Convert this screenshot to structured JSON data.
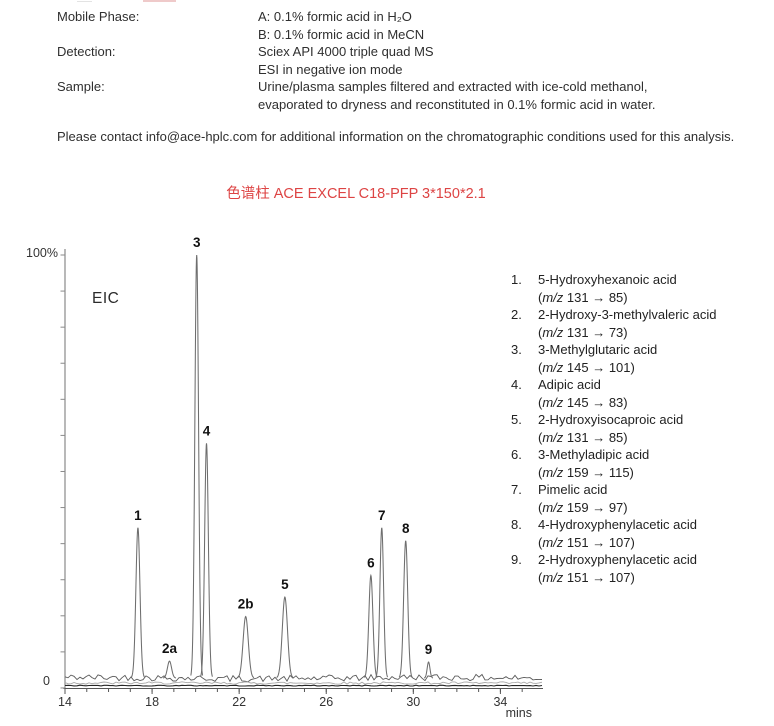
{
  "conditions": {
    "rows": [
      {
        "label": "Mobile Phase:",
        "lines": [
          "A: 0.1% formic acid in H₂O",
          "B: 0.1% formic acid in MeCN"
        ]
      },
      {
        "label": "Detection:",
        "lines": [
          "Sciex API 4000 triple quad MS",
          "ESI in negative ion mode"
        ]
      },
      {
        "label": "Sample:",
        "lines": [
          "Urine/plasma samples filtered and extracted with ice-cold methanol,",
          "evaporated to dryness and reconstituted in 0.1% formic acid in water."
        ]
      }
    ]
  },
  "contact": {
    "text": "Please contact info@ace-hplc.com for additional information on the  chromatographic conditions used for this analysis."
  },
  "column_title": {
    "text": "色谱柱 ACE EXCEL C18-PFP 3*150*2.1",
    "color": "#dd4444"
  },
  "chart_data": {
    "type": "line",
    "title": "EIC",
    "xlabel": "mins",
    "ylabel_top": "100%",
    "ylabel_bottom": "0",
    "x_range": [
      14,
      36
    ],
    "x_ticks_major": [
      14,
      18,
      22,
      26,
      30,
      34
    ],
    "x_tick_minor_step": 1,
    "y_range_pct": [
      0,
      100
    ],
    "grid": "off",
    "legend_position": "right",
    "baseline_noise_pct": 2.3,
    "trace_color": "#6e6e6e",
    "axis_color": "#8a8a8a",
    "peaks": [
      {
        "label": "1",
        "rt_min": 17.35,
        "apex_pct": 37,
        "fwhm_min": 0.22
      },
      {
        "label": "2a",
        "rt_min": 18.8,
        "apex_pct": 6.2,
        "fwhm_min": 0.22
      },
      {
        "label": "3",
        "rt_min": 20.05,
        "apex_pct": 100,
        "fwhm_min": 0.2
      },
      {
        "label": "4",
        "rt_min": 20.5,
        "apex_pct": 56.5,
        "fwhm_min": 0.2
      },
      {
        "label": "2b",
        "rt_min": 22.3,
        "apex_pct": 16.5,
        "fwhm_min": 0.28
      },
      {
        "label": "5",
        "rt_min": 24.1,
        "apex_pct": 21,
        "fwhm_min": 0.28
      },
      {
        "label": "6",
        "rt_min": 28.05,
        "apex_pct": 26,
        "fwhm_min": 0.22
      },
      {
        "label": "7",
        "rt_min": 28.55,
        "apex_pct": 37,
        "fwhm_min": 0.2
      },
      {
        "label": "8",
        "rt_min": 29.65,
        "apex_pct": 34,
        "fwhm_min": 0.22
      },
      {
        "label": "9",
        "rt_min": 30.7,
        "apex_pct": 6,
        "fwhm_min": 0.15
      }
    ],
    "baseline_traces": [
      {
        "base_pct": 2.3,
        "amp_pct": 0.75,
        "color": "#5a5a5a",
        "width": 0.9
      },
      {
        "base_pct": 1.15,
        "amp_pct": 0.28,
        "color": "#a8a8a8",
        "width": 0.9
      },
      {
        "base_pct": 0.55,
        "amp_pct": 0.1,
        "color": "#262626",
        "width": 1.1
      }
    ]
  },
  "legend": {
    "items": [
      {
        "num": "1.",
        "name": "5-Hydroxyhexanoic acid",
        "mz_open": "(",
        "mz_label": "m/z",
        "mz_rest": " 131 → 85)"
      },
      {
        "num": "2.",
        "name": "2-Hydroxy-3-methylvaleric acid",
        "mz_open": "(",
        "mz_label": "m/z",
        "mz_rest": " 131 → 73)"
      },
      {
        "num": "3.",
        "name": "3-Methylglutaric acid",
        "mz_open": "(",
        "mz_label": "m/z",
        "mz_rest": " 145 → 101)"
      },
      {
        "num": "4.",
        "name": "Adipic acid",
        "mz_open": "(",
        "mz_label": "m/z",
        "mz_rest": " 145 → 83)"
      },
      {
        "num": "5.",
        "name": "2-Hydroxyisocaproic acid",
        "mz_open": "(",
        "mz_label": "m/z",
        "mz_rest": " 131 → 85)"
      },
      {
        "num": "6.",
        "name": "3-Methyladipic acid",
        "mz_open": "(",
        "mz_label": "m/z",
        "mz_rest": " 159 → 115)"
      },
      {
        "num": "7.",
        "name": "Pimelic acid",
        "mz_open": "(",
        "mz_label": "m/z",
        "mz_rest": " 159 → 97)"
      },
      {
        "num": "8.",
        "name": "4-Hydroxyphenylacetic acid",
        "mz_open": "(",
        "mz_label": "m/z",
        "mz_rest": " 151 → 107)"
      },
      {
        "num": "9.",
        "name": "2-Hydroxyphenylacetic acid",
        "mz_open": "(",
        "mz_label": "m/z",
        "mz_rest": " 151 → 107)"
      }
    ]
  }
}
